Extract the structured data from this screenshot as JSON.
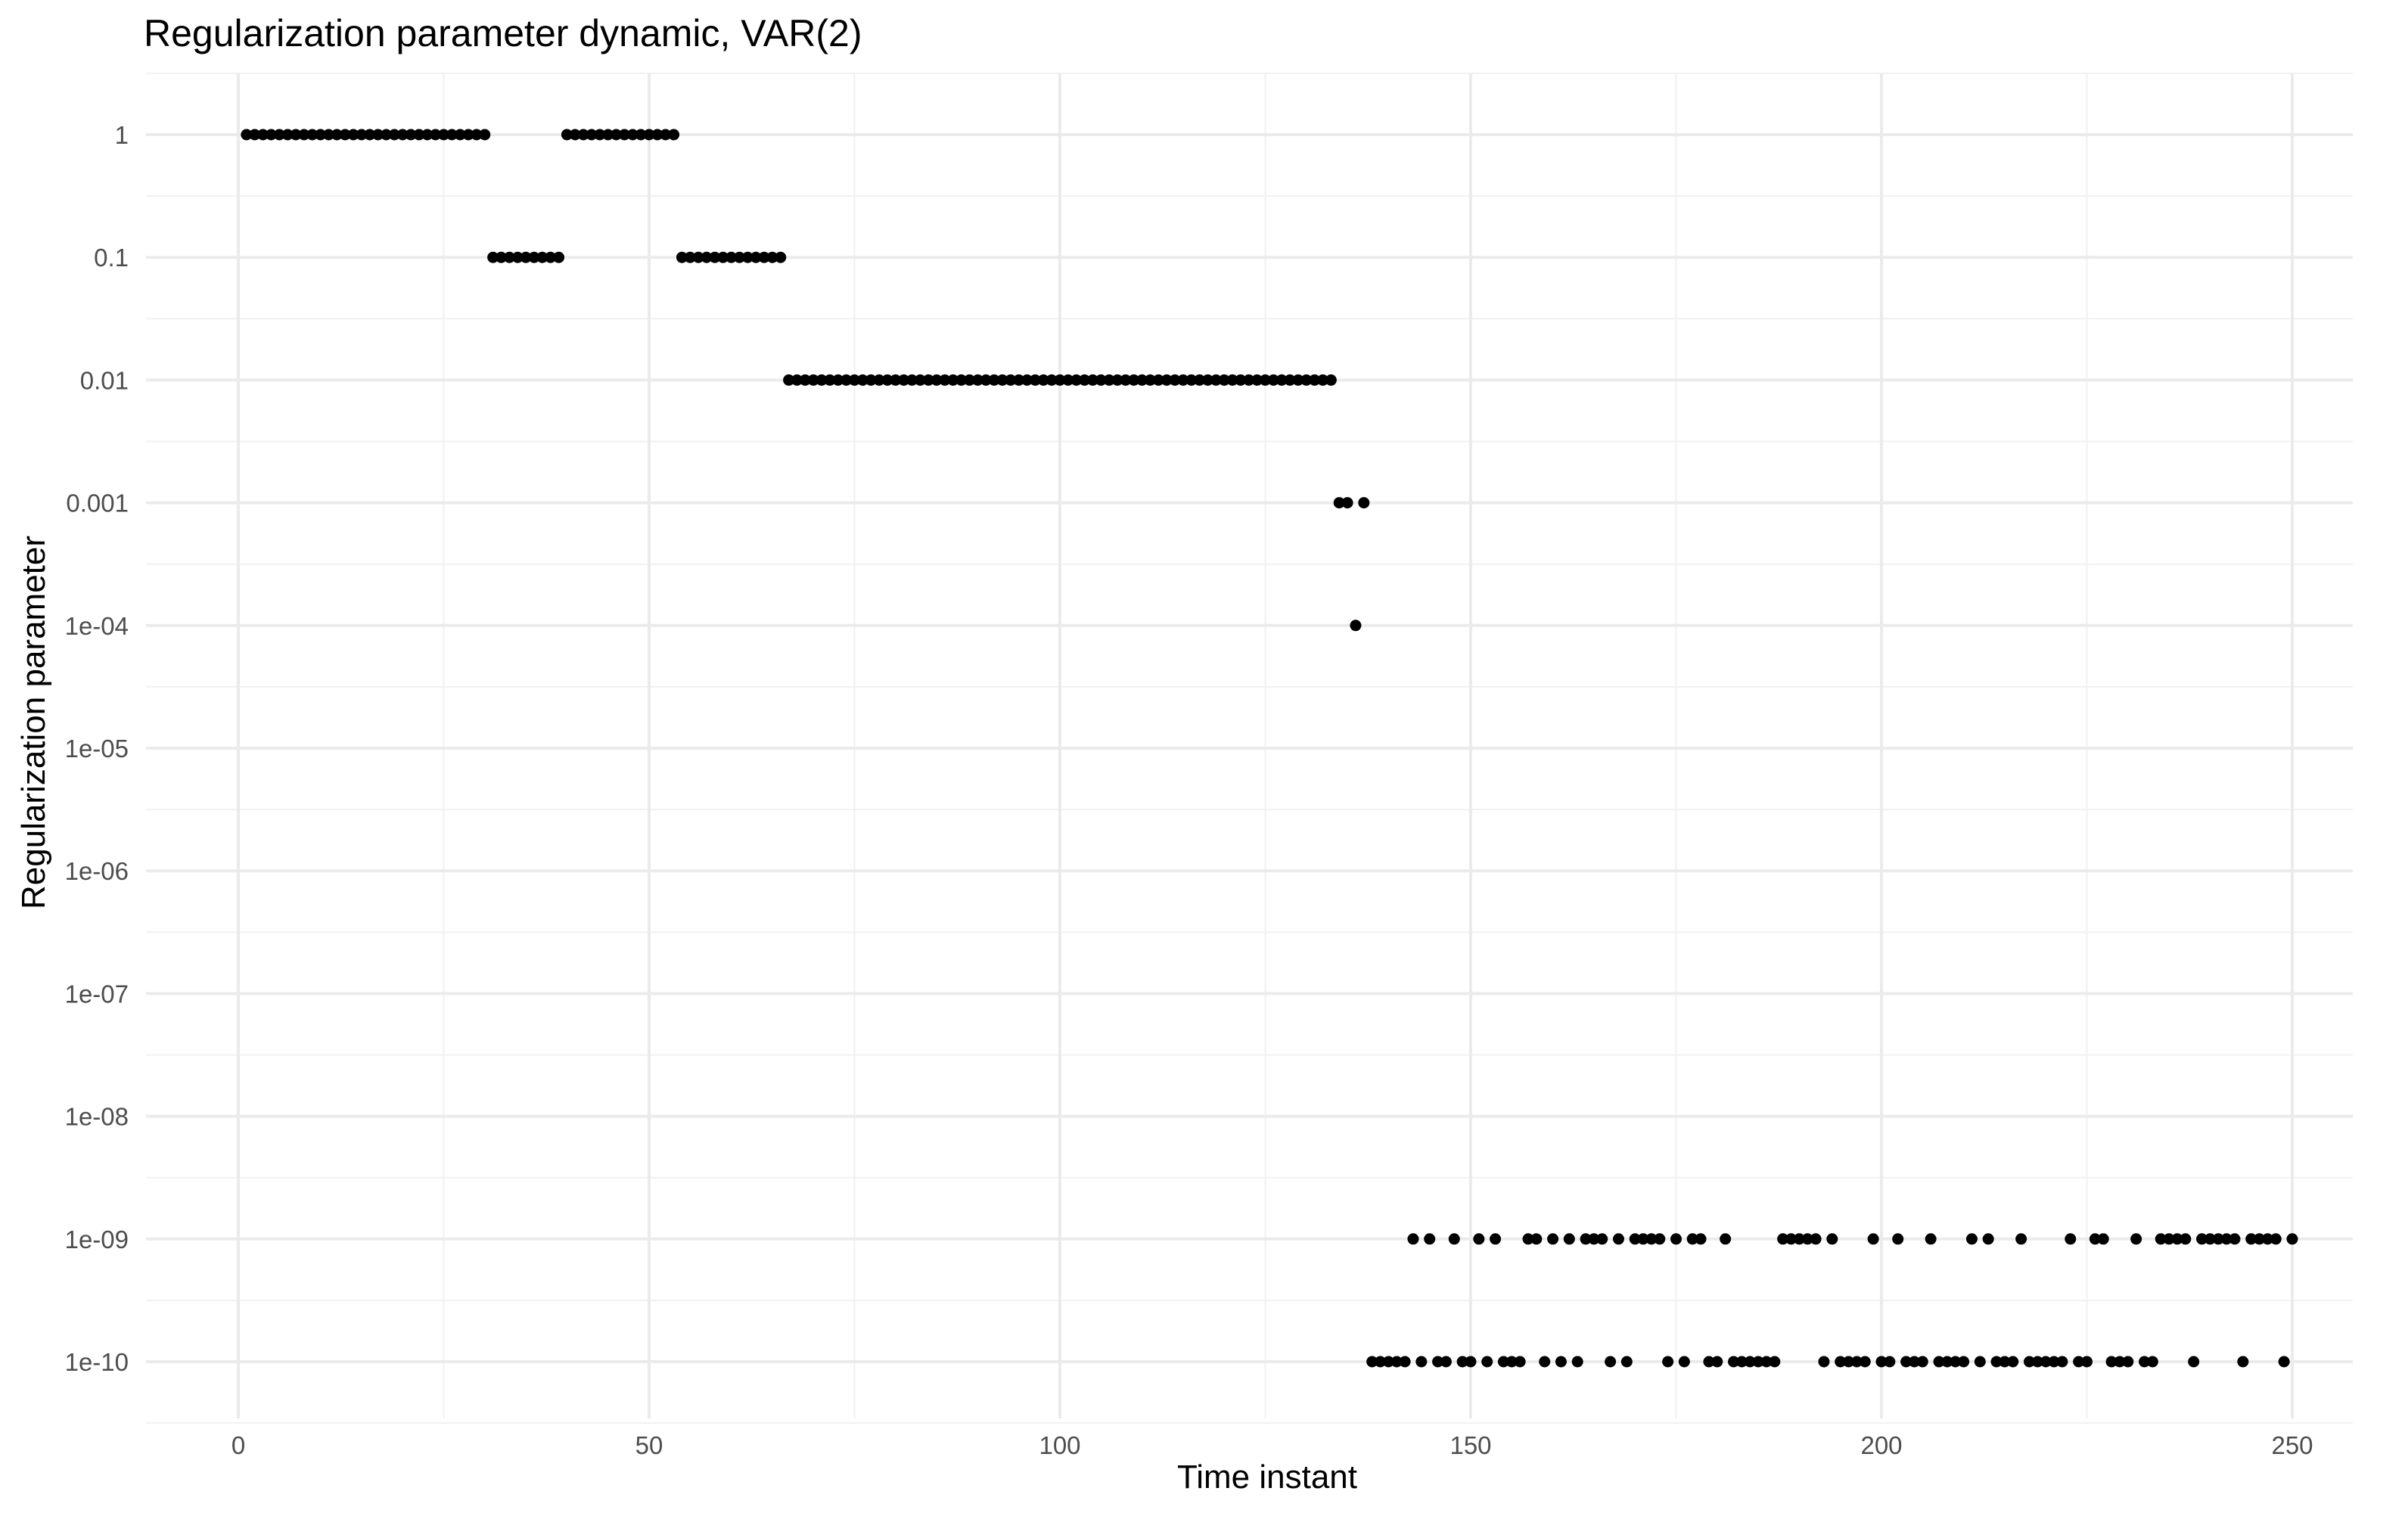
{
  "chart_data": {
    "type": "scatter",
    "title": "Regularization parameter dynamic, VAR(2)",
    "xlabel": "Time instant",
    "ylabel": "Regularization parameter",
    "xlim": [
      -11,
      260
    ],
    "ylim_log10": [
      -10.5,
      0.5
    ],
    "y_scale": "log10",
    "grid": true,
    "x_ticks": [
      0,
      50,
      100,
      150,
      200,
      250
    ],
    "x_tick_labels": [
      "0",
      "50",
      "100",
      "150",
      "200",
      "250"
    ],
    "y_ticks": [
      1,
      0.1,
      0.01,
      0.001,
      0.0001,
      1e-05,
      1e-06,
      1e-07,
      1e-08,
      1e-09,
      1e-10
    ],
    "y_tick_labels": [
      "1",
      "0.1",
      "0.01",
      "0.001",
      "1e-04",
      "1e-05",
      "1e-06",
      "1e-07",
      "1e-08",
      "1e-09",
      "1e-10"
    ],
    "series": [
      {
        "points": [
          [
            1,
            1
          ],
          [
            2,
            1
          ],
          [
            3,
            1
          ],
          [
            4,
            1
          ],
          [
            5,
            1
          ],
          [
            6,
            1
          ],
          [
            7,
            1
          ],
          [
            8,
            1
          ],
          [
            9,
            1
          ],
          [
            10,
            1
          ],
          [
            11,
            1
          ],
          [
            12,
            1
          ],
          [
            13,
            1
          ],
          [
            14,
            1
          ],
          [
            15,
            1
          ],
          [
            16,
            1
          ],
          [
            17,
            1
          ],
          [
            18,
            1
          ],
          [
            19,
            1
          ],
          [
            20,
            1
          ],
          [
            21,
            1
          ],
          [
            22,
            1
          ],
          [
            23,
            1
          ],
          [
            24,
            1
          ],
          [
            25,
            1
          ],
          [
            26,
            1
          ],
          [
            27,
            1
          ],
          [
            28,
            1
          ],
          [
            29,
            1
          ],
          [
            30,
            1
          ],
          [
            31,
            0.1
          ],
          [
            32,
            0.1
          ],
          [
            33,
            0.1
          ],
          [
            34,
            0.1
          ],
          [
            35,
            0.1
          ],
          [
            36,
            0.1
          ],
          [
            37,
            0.1
          ],
          [
            38,
            0.1
          ],
          [
            39,
            0.1
          ],
          [
            40,
            1
          ],
          [
            41,
            1
          ],
          [
            42,
            1
          ],
          [
            43,
            1
          ],
          [
            44,
            1
          ],
          [
            45,
            1
          ],
          [
            46,
            1
          ],
          [
            47,
            1
          ],
          [
            48,
            1
          ],
          [
            49,
            1
          ],
          [
            50,
            1
          ],
          [
            51,
            1
          ],
          [
            52,
            1
          ],
          [
            53,
            1
          ],
          [
            54,
            0.1
          ],
          [
            55,
            0.1
          ],
          [
            56,
            0.1
          ],
          [
            57,
            0.1
          ],
          [
            58,
            0.1
          ],
          [
            59,
            0.1
          ],
          [
            60,
            0.1
          ],
          [
            61,
            0.1
          ],
          [
            62,
            0.1
          ],
          [
            63,
            0.1
          ],
          [
            64,
            0.1
          ],
          [
            65,
            0.1
          ],
          [
            66,
            0.1
          ],
          [
            67,
            0.01
          ],
          [
            68,
            0.01
          ],
          [
            69,
            0.01
          ],
          [
            70,
            0.01
          ],
          [
            71,
            0.01
          ],
          [
            72,
            0.01
          ],
          [
            73,
            0.01
          ],
          [
            74,
            0.01
          ],
          [
            75,
            0.01
          ],
          [
            76,
            0.01
          ],
          [
            77,
            0.01
          ],
          [
            78,
            0.01
          ],
          [
            79,
            0.01
          ],
          [
            80,
            0.01
          ],
          [
            81,
            0.01
          ],
          [
            82,
            0.01
          ],
          [
            83,
            0.01
          ],
          [
            84,
            0.01
          ],
          [
            85,
            0.01
          ],
          [
            86,
            0.01
          ],
          [
            87,
            0.01
          ],
          [
            88,
            0.01
          ],
          [
            89,
            0.01
          ],
          [
            90,
            0.01
          ],
          [
            91,
            0.01
          ],
          [
            92,
            0.01
          ],
          [
            93,
            0.01
          ],
          [
            94,
            0.01
          ],
          [
            95,
            0.01
          ],
          [
            96,
            0.01
          ],
          [
            97,
            0.01
          ],
          [
            98,
            0.01
          ],
          [
            99,
            0.01
          ],
          [
            100,
            0.01
          ],
          [
            101,
            0.01
          ],
          [
            102,
            0.01
          ],
          [
            103,
            0.01
          ],
          [
            104,
            0.01
          ],
          [
            105,
            0.01
          ],
          [
            106,
            0.01
          ],
          [
            107,
            0.01
          ],
          [
            108,
            0.01
          ],
          [
            109,
            0.01
          ],
          [
            110,
            0.01
          ],
          [
            111,
            0.01
          ],
          [
            112,
            0.01
          ],
          [
            113,
            0.01
          ],
          [
            114,
            0.01
          ],
          [
            115,
            0.01
          ],
          [
            116,
            0.01
          ],
          [
            117,
            0.01
          ],
          [
            118,
            0.01
          ],
          [
            119,
            0.01
          ],
          [
            120,
            0.01
          ],
          [
            121,
            0.01
          ],
          [
            122,
            0.01
          ],
          [
            123,
            0.01
          ],
          [
            124,
            0.01
          ],
          [
            125,
            0.01
          ],
          [
            126,
            0.01
          ],
          [
            127,
            0.01
          ],
          [
            128,
            0.01
          ],
          [
            129,
            0.01
          ],
          [
            130,
            0.01
          ],
          [
            131,
            0.01
          ],
          [
            132,
            0.01
          ],
          [
            133,
            0.01
          ],
          [
            134,
            0.001
          ],
          [
            135,
            0.001
          ],
          [
            136,
            0.0001
          ],
          [
            137,
            0.001
          ],
          [
            138,
            1e-10
          ],
          [
            139,
            1e-10
          ],
          [
            140,
            1e-10
          ],
          [
            141,
            1e-10
          ],
          [
            142,
            1e-10
          ],
          [
            143,
            1e-09
          ],
          [
            144,
            1e-10
          ],
          [
            145,
            1e-09
          ],
          [
            146,
            1e-10
          ],
          [
            147,
            1e-10
          ],
          [
            148,
            1e-09
          ],
          [
            149,
            1e-10
          ],
          [
            150,
            1e-10
          ],
          [
            151,
            1e-09
          ],
          [
            152,
            1e-10
          ],
          [
            153,
            1e-09
          ],
          [
            154,
            1e-10
          ],
          [
            155,
            1e-10
          ],
          [
            156,
            1e-10
          ],
          [
            157,
            1e-09
          ],
          [
            158,
            1e-09
          ],
          [
            159,
            1e-10
          ],
          [
            160,
            1e-09
          ],
          [
            161,
            1e-10
          ],
          [
            162,
            1e-09
          ],
          [
            163,
            1e-10
          ],
          [
            164,
            1e-09
          ],
          [
            165,
            1e-09
          ],
          [
            166,
            1e-09
          ],
          [
            167,
            1e-10
          ],
          [
            168,
            1e-09
          ],
          [
            169,
            1e-10
          ],
          [
            170,
            1e-09
          ],
          [
            171,
            1e-09
          ],
          [
            172,
            1e-09
          ],
          [
            173,
            1e-09
          ],
          [
            174,
            1e-10
          ],
          [
            175,
            1e-09
          ],
          [
            176,
            1e-10
          ],
          [
            177,
            1e-09
          ],
          [
            178,
            1e-09
          ],
          [
            179,
            1e-10
          ],
          [
            180,
            1e-10
          ],
          [
            181,
            1e-09
          ],
          [
            182,
            1e-10
          ],
          [
            183,
            1e-10
          ],
          [
            184,
            1e-10
          ],
          [
            185,
            1e-10
          ],
          [
            186,
            1e-10
          ],
          [
            187,
            1e-10
          ],
          [
            188,
            1e-09
          ],
          [
            189,
            1e-09
          ],
          [
            190,
            1e-09
          ],
          [
            191,
            1e-09
          ],
          [
            192,
            1e-09
          ],
          [
            193,
            1e-10
          ],
          [
            194,
            1e-09
          ],
          [
            195,
            1e-10
          ],
          [
            196,
            1e-10
          ],
          [
            197,
            1e-10
          ],
          [
            198,
            1e-10
          ],
          [
            199,
            1e-09
          ],
          [
            200,
            1e-10
          ],
          [
            201,
            1e-10
          ],
          [
            202,
            1e-09
          ],
          [
            203,
            1e-10
          ],
          [
            204,
            1e-10
          ],
          [
            205,
            1e-10
          ],
          [
            206,
            1e-09
          ],
          [
            207,
            1e-10
          ],
          [
            208,
            1e-10
          ],
          [
            209,
            1e-10
          ],
          [
            210,
            1e-10
          ],
          [
            211,
            1e-09
          ],
          [
            212,
            1e-10
          ],
          [
            213,
            1e-09
          ],
          [
            214,
            1e-10
          ],
          [
            215,
            1e-10
          ],
          [
            216,
            1e-10
          ],
          [
            217,
            1e-09
          ],
          [
            218,
            1e-10
          ],
          [
            219,
            1e-10
          ],
          [
            220,
            1e-10
          ],
          [
            221,
            1e-10
          ],
          [
            222,
            1e-10
          ],
          [
            223,
            1e-09
          ],
          [
            224,
            1e-10
          ],
          [
            225,
            1e-10
          ],
          [
            226,
            1e-09
          ],
          [
            227,
            1e-09
          ],
          [
            228,
            1e-10
          ],
          [
            229,
            1e-10
          ],
          [
            230,
            1e-10
          ],
          [
            231,
            1e-09
          ],
          [
            232,
            1e-10
          ],
          [
            233,
            1e-10
          ],
          [
            234,
            1e-09
          ],
          [
            235,
            1e-09
          ],
          [
            236,
            1e-09
          ],
          [
            237,
            1e-09
          ],
          [
            238,
            1e-10
          ],
          [
            239,
            1e-09
          ],
          [
            240,
            1e-09
          ],
          [
            241,
            1e-09
          ],
          [
            242,
            1e-09
          ],
          [
            243,
            1e-09
          ],
          [
            244,
            1e-10
          ],
          [
            245,
            1e-09
          ],
          [
            246,
            1e-09
          ],
          [
            247,
            1e-09
          ],
          [
            248,
            1e-09
          ],
          [
            249,
            1e-10
          ],
          [
            250,
            1e-09
          ]
        ]
      }
    ]
  }
}
